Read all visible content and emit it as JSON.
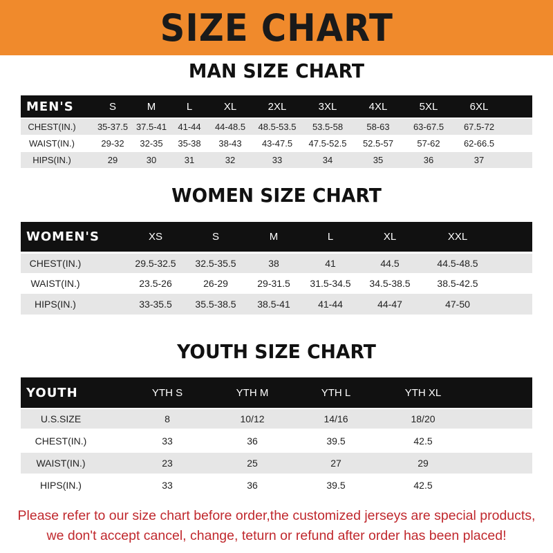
{
  "banner": {
    "title": "SIZE CHART",
    "color": "#f08a2c"
  },
  "men": {
    "title": "MAN SIZE CHART",
    "header": [
      "MEN'S",
      "S",
      "M",
      "L",
      "XL",
      "2XL",
      "3XL",
      "4XL",
      "5XL",
      "6XL"
    ],
    "rows": [
      [
        "CHEST(IN.)",
        "35-37.5",
        "37.5-41",
        "41-44",
        "44-48.5",
        "48.5-53.5",
        "53.5-58",
        "58-63",
        "63-67.5",
        "67.5-72"
      ],
      [
        "WAIST(IN.)",
        "29-32",
        "32-35",
        "35-38",
        "38-43",
        "43-47.5",
        "47.5-52.5",
        "52.5-57",
        "57-62",
        "62-66.5"
      ],
      [
        "HIPS(IN.)",
        "29",
        "30",
        "31",
        "32",
        "33",
        "34",
        "35",
        "36",
        "37"
      ]
    ]
  },
  "women": {
    "title": "WOMEN SIZE CHART",
    "header": [
      "WOMEN'S",
      "XS",
      "S",
      "M",
      "L",
      "XL",
      "XXL"
    ],
    "rows": [
      [
        "CHEST(IN.)",
        "29.5-32.5",
        "32.5-35.5",
        "38",
        "41",
        "44.5",
        "44.5-48.5"
      ],
      [
        "WAIST(IN.)",
        "23.5-26",
        "26-29",
        "29-31.5",
        "31.5-34.5",
        "34.5-38.5",
        "38.5-42.5"
      ],
      [
        "HIPS(IN.)",
        "33-35.5",
        "35.5-38.5",
        "38.5-41",
        "41-44",
        "44-47",
        "47-50"
      ]
    ]
  },
  "youth": {
    "title": "YOUTH SIZE CHART",
    "header": [
      "YOUTH",
      "YTH S",
      "YTH M",
      "YTH L",
      "YTH XL"
    ],
    "rows": [
      [
        "U.S.SIZE",
        "8",
        "10/12",
        "14/16",
        "18/20"
      ],
      [
        "CHEST(IN.)",
        "33",
        "36",
        "39.5",
        "42.5"
      ],
      [
        "WAIST(IN.)",
        "23",
        "25",
        "27",
        "29"
      ],
      [
        "HIPS(IN.)",
        "33",
        "36",
        "39.5",
        "42.5"
      ]
    ]
  },
  "notice": {
    "line1": "Please refer to our size chart before order,the customized jerseys are special products,",
    "line2": "we don't accept cancel, change, teturn or refund after order has been placed!",
    "color": "#c0282d"
  }
}
